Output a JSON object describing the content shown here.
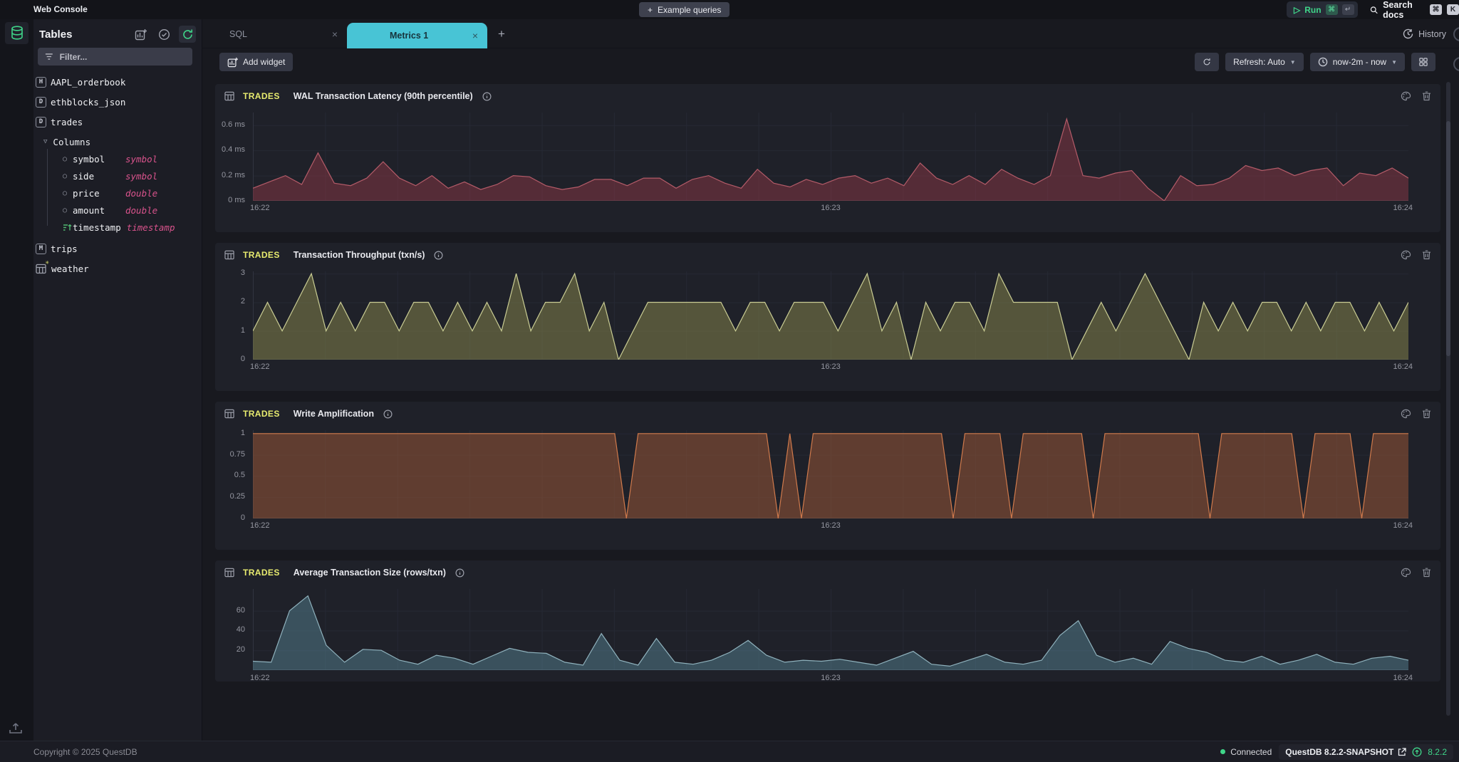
{
  "topbar": {
    "app_title": "Web Console",
    "example_queries": "Example queries",
    "run_label": "Run",
    "run_kbd_cmd": "⌘",
    "run_kbd_enter": "↵",
    "search_docs": "Search docs",
    "search_kbd_cmd": "⌘",
    "search_kbd_k": "K"
  },
  "sidebar": {
    "title": "Tables",
    "filter_placeholder": "Filter...",
    "tables": [
      {
        "badge": "H",
        "name": "AAPL_orderbook"
      },
      {
        "badge": "D",
        "name": "ethblocks_json"
      },
      {
        "badge": "D",
        "name": "trades"
      },
      {
        "badge": "M",
        "name": "trips"
      },
      {
        "badge": "matview",
        "name": "weather"
      }
    ],
    "columns_label": "Columns",
    "columns": [
      {
        "name": "symbol",
        "type": "symbol"
      },
      {
        "name": "side",
        "type": "symbol"
      },
      {
        "name": "price",
        "type": "double"
      },
      {
        "name": "amount",
        "type": "double"
      },
      {
        "name": "timestamp",
        "type": "timestamp"
      }
    ]
  },
  "tabs": {
    "sql": "SQL",
    "metrics": "Metrics 1",
    "history": "History"
  },
  "toolbar": {
    "add_widget": "Add widget",
    "refresh": "Refresh: Auto",
    "range": "now-2m - now"
  },
  "footer": {
    "copyright": "Copyright © 2025 QuestDB",
    "connected": "Connected",
    "version": "QuestDB 8.2.2-SNAPSHOT",
    "update_version": "8.2.2"
  },
  "colors": {
    "accent_cyan": "#48c4d5",
    "accent_green": "#3fd589",
    "table_yellow": "#e8ec6f",
    "type_pink": "#d9538c",
    "grid": "#262934",
    "axis_text": "#9597a1",
    "card_bg": "#1f2129"
  },
  "chart_data": [
    {
      "type": "area",
      "table": "TRADES",
      "title": "WAL Transaction Latency (90th percentile)",
      "x_ticks": [
        "16:22",
        "16:23",
        "16:24"
      ],
      "y_ticks": [
        {
          "label": "0.6 ms",
          "value": 0.6
        },
        {
          "label": "0.4 ms",
          "value": 0.4
        },
        {
          "label": "0.2 ms",
          "value": 0.2
        },
        {
          "label": "0 ms",
          "value": 0
        }
      ],
      "ylim": [
        0,
        0.7
      ],
      "stroke": "#b35b68",
      "fill": "rgba(140,55,70,0.5)",
      "values": [
        0.1,
        0.15,
        0.2,
        0.13,
        0.38,
        0.14,
        0.12,
        0.18,
        0.31,
        0.18,
        0.12,
        0.2,
        0.1,
        0.15,
        0.09,
        0.13,
        0.2,
        0.19,
        0.12,
        0.09,
        0.11,
        0.17,
        0.17,
        0.12,
        0.18,
        0.18,
        0.1,
        0.17,
        0.2,
        0.14,
        0.1,
        0.25,
        0.14,
        0.11,
        0.17,
        0.13,
        0.18,
        0.2,
        0.14,
        0.18,
        0.12,
        0.3,
        0.18,
        0.13,
        0.2,
        0.13,
        0.25,
        0.18,
        0.13,
        0.2,
        0.65,
        0.2,
        0.18,
        0.22,
        0.24,
        0.1,
        0.0,
        0.2,
        0.12,
        0.13,
        0.18,
        0.28,
        0.24,
        0.26,
        0.2,
        0.24,
        0.26,
        0.12,
        0.22,
        0.2,
        0.26,
        0.18
      ]
    },
    {
      "type": "area",
      "table": "TRADES",
      "title": "Transaction Throughput (txn/s)",
      "x_ticks": [
        "16:22",
        "16:23",
        "16:24"
      ],
      "y_ticks": [
        {
          "label": "3",
          "value": 3
        },
        {
          "label": "2",
          "value": 2
        },
        {
          "label": "1",
          "value": 1
        },
        {
          "label": "0",
          "value": 0
        }
      ],
      "ylim": [
        0,
        3.08
      ],
      "stroke": "#c9cc93",
      "fill": "rgba(130,130,75,0.55)",
      "values": [
        1,
        2,
        1,
        2,
        3,
        1,
        2,
        1,
        2,
        2,
        1,
        2,
        2,
        1,
        2,
        1,
        2,
        1,
        3,
        1,
        2,
        2,
        3,
        1,
        2,
        0,
        1,
        2,
        2,
        2,
        2,
        2,
        2,
        1,
        2,
        2,
        1,
        2,
        2,
        2,
        1,
        2,
        3,
        1,
        2,
        0,
        2,
        1,
        2,
        2,
        1,
        3,
        2,
        2,
        2,
        2,
        0,
        1,
        2,
        1,
        2,
        3,
        2,
        1,
        0,
        2,
        1,
        2,
        1,
        2,
        2,
        1,
        2,
        1,
        2,
        2,
        1,
        2,
        1,
        2
      ]
    },
    {
      "type": "area",
      "table": "TRADES",
      "title": "Write Amplification",
      "x_ticks": [
        "16:22",
        "16:23",
        "16:24"
      ],
      "y_ticks": [
        {
          "label": "1",
          "value": 1
        },
        {
          "label": "0.75",
          "value": 0.75
        },
        {
          "label": "0.5",
          "value": 0.5
        },
        {
          "label": "0.25",
          "value": 0.25
        },
        {
          "label": "0",
          "value": 0
        }
      ],
      "ylim": [
        0,
        1.04
      ],
      "stroke": "#d07a4c",
      "fill": "rgba(150,85,55,0.55)",
      "values": [
        1,
        1,
        1,
        1,
        1,
        1,
        1,
        1,
        1,
        1,
        1,
        1,
        1,
        1,
        1,
        1,
        1,
        1,
        1,
        1,
        1,
        1,
        1,
        1,
        1,
        1,
        1,
        1,
        1,
        1,
        1,
        1,
        0,
        1,
        1,
        1,
        1,
        1,
        1,
        1,
        1,
        1,
        1,
        1,
        1,
        0,
        1,
        0,
        1,
        1,
        1,
        1,
        1,
        1,
        1,
        1,
        1,
        1,
        1,
        1,
        0,
        1,
        1,
        1,
        1,
        0,
        1,
        1,
        1,
        1,
        1,
        1,
        0,
        1,
        1,
        1,
        1,
        1,
        1,
        1,
        1,
        1,
        0,
        1,
        1,
        1,
        1,
        1,
        1,
        1,
        0,
        1,
        1,
        1,
        1,
        0,
        1,
        1,
        1,
        1
      ]
    },
    {
      "type": "area",
      "table": "TRADES",
      "title": "Average Transaction Size (rows/txn)",
      "x_ticks": [
        "16:22",
        "16:23",
        "16:24"
      ],
      "y_ticks": [
        {
          "label": "60",
          "value": 60
        },
        {
          "label": "40",
          "value": 40
        },
        {
          "label": "20",
          "value": 20
        }
      ],
      "ylim": [
        0,
        82
      ],
      "stroke": "#8fb2bd",
      "fill": "rgba(85,130,145,0.5)",
      "values": [
        9,
        8,
        60,
        75,
        25,
        8,
        21,
        20,
        10,
        6,
        15,
        12,
        6,
        14,
        22,
        18,
        17,
        8,
        5,
        37,
        10,
        5,
        32,
        8,
        6,
        10,
        18,
        30,
        15,
        8,
        10,
        9,
        11,
        8,
        5,
        12,
        19,
        6,
        4,
        10,
        16,
        8,
        6,
        10,
        35,
        50,
        15,
        8,
        12,
        6,
        29,
        22,
        18,
        10,
        8,
        14,
        6,
        10,
        16,
        8,
        6,
        12,
        14,
        10
      ]
    }
  ]
}
